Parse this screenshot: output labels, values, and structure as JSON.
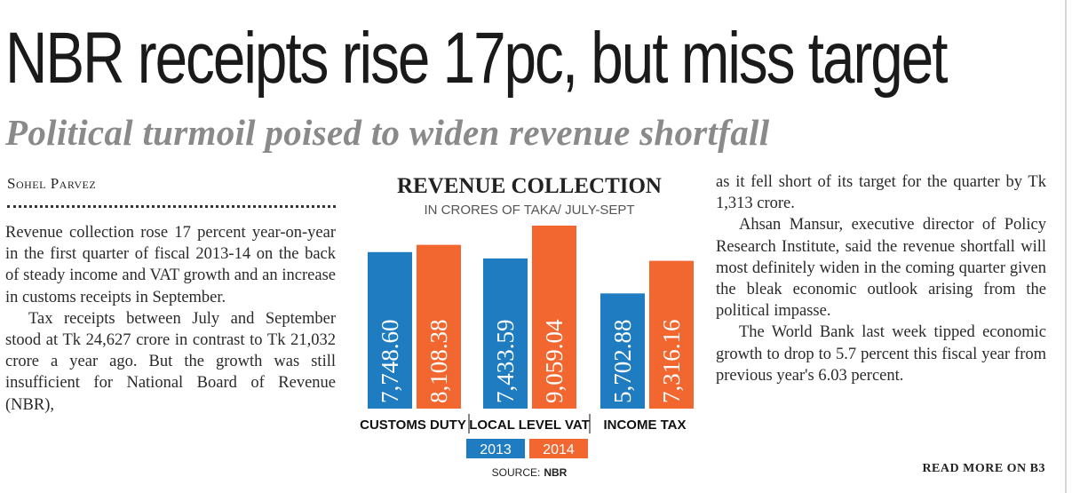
{
  "headline": "NBR receipts rise 17pc, but miss target",
  "subheadline": "Political turmoil poised to widen revenue shortfall",
  "byline": "Sohel Parvez",
  "left_column": [
    "Revenue collection rose 17 percent year-on-year in the first quarter of fiscal 2013-14 on the back of steady income and VAT growth and an increase in customs receipts in September.",
    "Tax receipts between July and September stood at Tk 24,627 crore in contrast to Tk 21,032 crore a year ago. But the growth was still insufficient for National Board of Revenue (NBR),"
  ],
  "right_column": [
    "as it fell short of its target for the quarter by Tk 1,313 crore.",
    "Ahsan Mansur, executive director of Policy Research Institute, said the revenue shortfall will most definitely widen in the coming quarter given the bleak economic outlook arising from the political impasse.",
    "The World Bank last week tipped economic growth to drop to 5.7 percent this fiscal year from previous year's 6.03 percent."
  ],
  "read_more": "READ MORE ON B3",
  "chart_data": {
    "type": "bar",
    "title": "REVENUE COLLECTION",
    "subtitle": "IN CRORES OF TAKA/ JULY-SEPT",
    "categories": [
      "CUSTOMS DUTY",
      "LOCAL LEVEL VAT",
      "INCOME TAX"
    ],
    "series": [
      {
        "name": "2013",
        "values": [
          7748.6,
          7433.59,
          5702.88
        ],
        "labels": [
          "7,748.60",
          "7,433.59",
          "5,702.88"
        ],
        "color": "#1f7cc0"
      },
      {
        "name": "2014",
        "values": [
          8108.38,
          9059.04,
          7316.16
        ],
        "labels": [
          "8,108.38",
          "9,059.04",
          "7,316.16"
        ],
        "color": "#f26630"
      }
    ],
    "legend_position": "bottom",
    "grid": false,
    "source_prefix": "SOURCE:",
    "source": "NBR"
  }
}
